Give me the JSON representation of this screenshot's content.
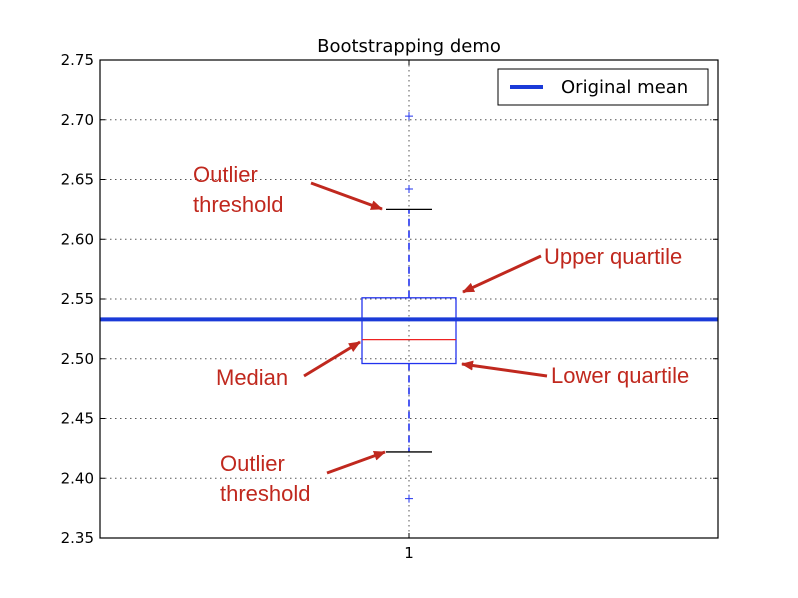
{
  "chart_data": {
    "type": "box",
    "title": "Bootstrapping demo",
    "xlabel": "",
    "ylabel": "",
    "categories": [
      "1"
    ],
    "ylim": [
      2.35,
      2.75
    ],
    "yticks": [
      2.35,
      2.4,
      2.45,
      2.5,
      2.55,
      2.6,
      2.65,
      2.7,
      2.75
    ],
    "ytick_labels": [
      "2.35",
      "2.40",
      "2.45",
      "2.50",
      "2.55",
      "2.60",
      "2.65",
      "2.70",
      "2.75"
    ],
    "grid": true,
    "box": {
      "category": "1",
      "lower_whisker": 2.422,
      "lower_quartile": 2.496,
      "median": 2.516,
      "upper_quartile": 2.551,
      "upper_whisker": 2.625,
      "outliers": [
        2.383,
        2.642,
        2.703
      ]
    },
    "mean_line": {
      "name": "Original mean",
      "value": 2.533
    },
    "legend": {
      "position": "top-right",
      "entries": [
        "Original mean"
      ]
    },
    "annotations": [
      {
        "lines": [
          "Outlier",
          "threshold"
        ],
        "target": "upper_whisker"
      },
      {
        "lines": [
          "Upper quartile"
        ],
        "target": "upper_quartile"
      },
      {
        "lines": [
          "Median"
        ],
        "target": "median"
      },
      {
        "lines": [
          "Lower quartile"
        ],
        "target": "lower_quartile"
      },
      {
        "lines": [
          "Outlier",
          "threshold"
        ],
        "target": "lower_whisker"
      }
    ],
    "colors": {
      "box": "#2233ee",
      "median": "#ee2222",
      "whisker_cap": "#000000",
      "mean_line": "#1a3ad8",
      "annotation": "#c0281e"
    }
  }
}
